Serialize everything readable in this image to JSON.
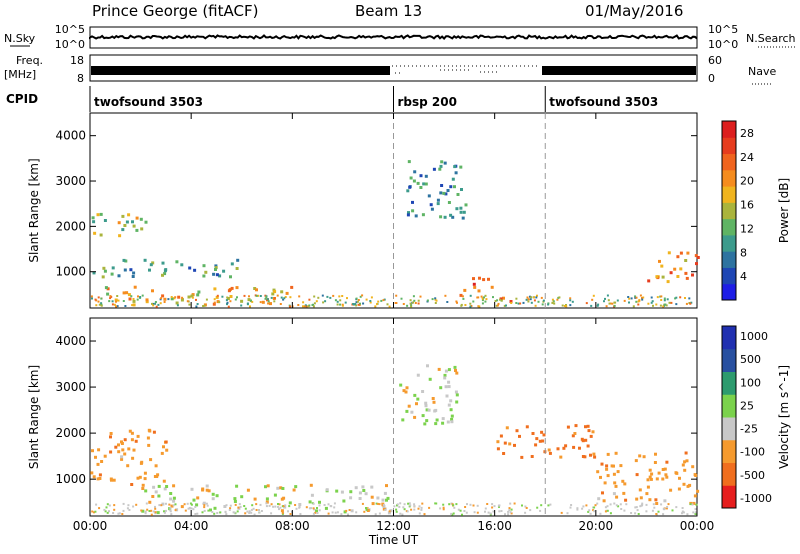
{
  "header": {
    "station": "Prince George (fitACF)",
    "beam": "Beam 13",
    "date": "01/May/2016"
  },
  "strip_labels": {
    "nsky": "N.Sky",
    "nsky_top": "10^5",
    "nsky_bottom": "10^0",
    "nsearch": "N.Search",
    "nsearch_top": "10^5",
    "nsearch_bottom": "10^0",
    "freq_label": "Freq.",
    "freq_unit": "[MHz]",
    "freq_top": "18",
    "freq_bottom": "8",
    "nave_label": "Nave",
    "nave_top": "60",
    "nave_bottom": "0",
    "cpid": "CPID"
  },
  "cpid_segments": [
    {
      "name": "twofsound 3503",
      "start_h": 0
    },
    {
      "name": "rbsp 200",
      "start_h": 12
    },
    {
      "name": "twofsound 3503",
      "start_h": 18
    }
  ],
  "colors": {
    "power": [
      "#1e1ee6",
      "#1e46b4",
      "#2d73a0",
      "#3c9b8c",
      "#5fb464",
      "#aab43c",
      "#f0b41e",
      "#f58c1e",
      "#f0641e",
      "#e63c1e",
      "#dc1e1e"
    ],
    "velocity_neg": [
      "#e61e1e",
      "#f06e1e",
      "#f59a2e",
      "#c8c8c8"
    ],
    "velocity_pos": [
      "#c8c8c8",
      "#7bd24c",
      "#2d9b6e",
      "#2850a0",
      "#2030b0"
    ]
  },
  "chart_data": [
    {
      "type": "heatmap",
      "title": "Power",
      "xlabel": "Time UT",
      "ylabel": "Slant Range [km]",
      "xlim": [
        0,
        24
      ],
      "ylim": [
        200,
        4500
      ],
      "x_ticks": [
        "00:00",
        "04:00",
        "08:00",
        "12:00",
        "16:00",
        "20:00",
        "00:00"
      ],
      "y_ticks": [
        "1000",
        "2000",
        "3000",
        "4000"
      ],
      "colorbar": {
        "label": "Power [dB]",
        "range": [
          0,
          30
        ],
        "ticks": [
          "4",
          "8",
          "12",
          "16",
          "20",
          "24",
          "28"
        ]
      },
      "features": [
        {
          "t0": 0,
          "t1": 2.5,
          "r0": 1800,
          "r1": 2300,
          "value": 14
        },
        {
          "t0": 0,
          "t1": 6,
          "r0": 900,
          "r1": 1300,
          "value": 10
        },
        {
          "t0": 0.5,
          "t1": 8,
          "r0": 300,
          "r1": 700,
          "value": 18
        },
        {
          "t0": 12.5,
          "t1": 15,
          "r0": 2200,
          "r1": 3500,
          "value": 8
        },
        {
          "t0": 14.5,
          "t1": 16,
          "r0": 500,
          "r1": 900,
          "value": 26
        },
        {
          "t0": 16,
          "t1": 17,
          "r0": 300,
          "r1": 500,
          "value": 24
        },
        {
          "t0": 22,
          "t1": 24,
          "r0": 800,
          "r1": 1500,
          "value": 22
        }
      ],
      "dashed_lines_h": [
        12,
        18
      ]
    },
    {
      "type": "heatmap",
      "title": "Velocity",
      "xlabel": "Time UT",
      "ylabel": "Slant Range [km]",
      "xlim": [
        0,
        24
      ],
      "ylim": [
        200,
        4500
      ],
      "x_ticks": [
        "00:00",
        "04:00",
        "08:00",
        "12:00",
        "16:00",
        "20:00",
        "00:00"
      ],
      "y_ticks": [
        "1000",
        "2000",
        "3000",
        "4000"
      ],
      "colorbar": {
        "label": "Velocity [m s^-1]",
        "ticks": [
          "1000",
          "500",
          "100",
          "25",
          "-25",
          "-100",
          "-500",
          "-1000"
        ]
      },
      "features": [
        {
          "t0": 0,
          "t1": 3,
          "r0": 900,
          "r1": 2100,
          "value": -200
        },
        {
          "t0": 2,
          "t1": 12,
          "r0": 300,
          "r1": 900,
          "value": 0
        },
        {
          "t0": 12,
          "t1": 14.5,
          "r0": 2200,
          "r1": 3500,
          "value": 0
        },
        {
          "t0": 16,
          "t1": 20,
          "r0": 1500,
          "r1": 2200,
          "value": -400
        },
        {
          "t0": 20,
          "t1": 24,
          "r0": 500,
          "r1": 1600,
          "value": -200
        }
      ],
      "dashed_lines_h": [
        12,
        18
      ]
    }
  ]
}
